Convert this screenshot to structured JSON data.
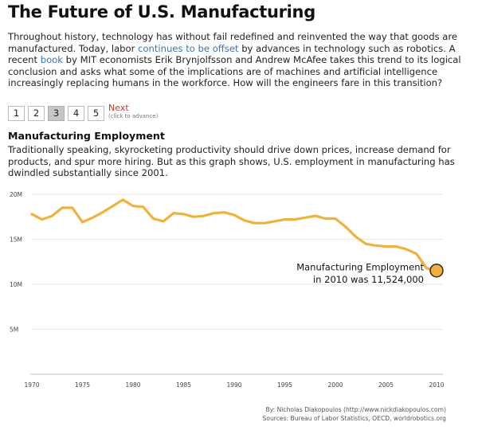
{
  "header": {
    "title": "The Future of U.S. Manufacturing"
  },
  "intro": {
    "t1": "Throughout history, technology has without fail redefined and reinvented the way that goods are manufactured. Today, labor ",
    "link1": "continues to be offset",
    "t2": " by advances in technology such as robotics. A recent ",
    "link2": "book",
    "t3": " by MIT economists Erik Brynjolfsson and Andrew McAfee takes this trend to its logical conclusion and asks what some of the implications are of machines and artificial intelligence increasingly replacing humans in the workforce. How will the engineers fare in this transition?"
  },
  "pager": {
    "pages": [
      "1",
      "2",
      "3",
      "4",
      "5"
    ],
    "active": "3",
    "next_label": "Next",
    "next_hint": "(click to advance)"
  },
  "section": {
    "title": "Manufacturing Employment",
    "text": "Traditionally speaking, skyrocketing productivity should drive down prices, increase demand for products, and spur more hiring. But as this graph shows, U.S. employment in manufacturing has dwindled substantially since 2001."
  },
  "colors": {
    "line": "#f0b23d",
    "marker_fill": "#f3ad3a",
    "marker_stroke": "#1f1f1f",
    "grid": "#e6e6e6"
  },
  "chart_data": {
    "type": "line",
    "title": "",
    "xlabel": "",
    "ylabel": "",
    "xlim": [
      1970,
      2010
    ],
    "ylim": [
      0,
      20
    ],
    "y_ticks": [
      {
        "v": 5,
        "label": "5M"
      },
      {
        "v": 10,
        "label": "10M"
      },
      {
        "v": 15,
        "label": "15M"
      },
      {
        "v": 20,
        "label": "20M"
      }
    ],
    "x_ticks": [
      1970,
      1975,
      1980,
      1985,
      1990,
      1995,
      2000,
      2005,
      2010
    ],
    "grid": true,
    "series": [
      {
        "x": [
          1970,
          1971,
          1972,
          1973,
          1974,
          1975,
          1976,
          1977,
          1978,
          1979,
          1980,
          1981,
          1982,
          1983,
          1984,
          1985,
          1986,
          1987,
          1988,
          1989,
          1990,
          1991,
          1992,
          1993,
          1994,
          1995,
          1996,
          1997,
          1998,
          1999,
          2000,
          2001,
          2002,
          2003,
          2004,
          2005,
          2006,
          2007,
          2008,
          2009,
          2010
        ],
        "values": [
          17.8,
          17.2,
          17.6,
          18.5,
          18.5,
          16.9,
          17.4,
          18.0,
          18.7,
          19.4,
          18.7,
          18.6,
          17.3,
          17.0,
          17.9,
          17.8,
          17.5,
          17.6,
          17.9,
          18.0,
          17.7,
          17.1,
          16.8,
          16.8,
          17.0,
          17.2,
          17.2,
          17.4,
          17.6,
          17.3,
          17.3,
          16.4,
          15.3,
          14.5,
          14.3,
          14.2,
          14.2,
          13.9,
          13.4,
          11.8,
          11.5
        ]
      }
    ],
    "annotation": {
      "line1": "Manufacturing Employment",
      "line2": "in 2010 was 11,524,000",
      "x": 2010,
      "y": 11.524
    }
  },
  "credits": {
    "by": "By: Nicholas Diakopoulos (http://www.nickdiakopoulos.com)",
    "sources": "Sources: Bureau of Labor Statistics, OECD, worldrobotics.org"
  }
}
